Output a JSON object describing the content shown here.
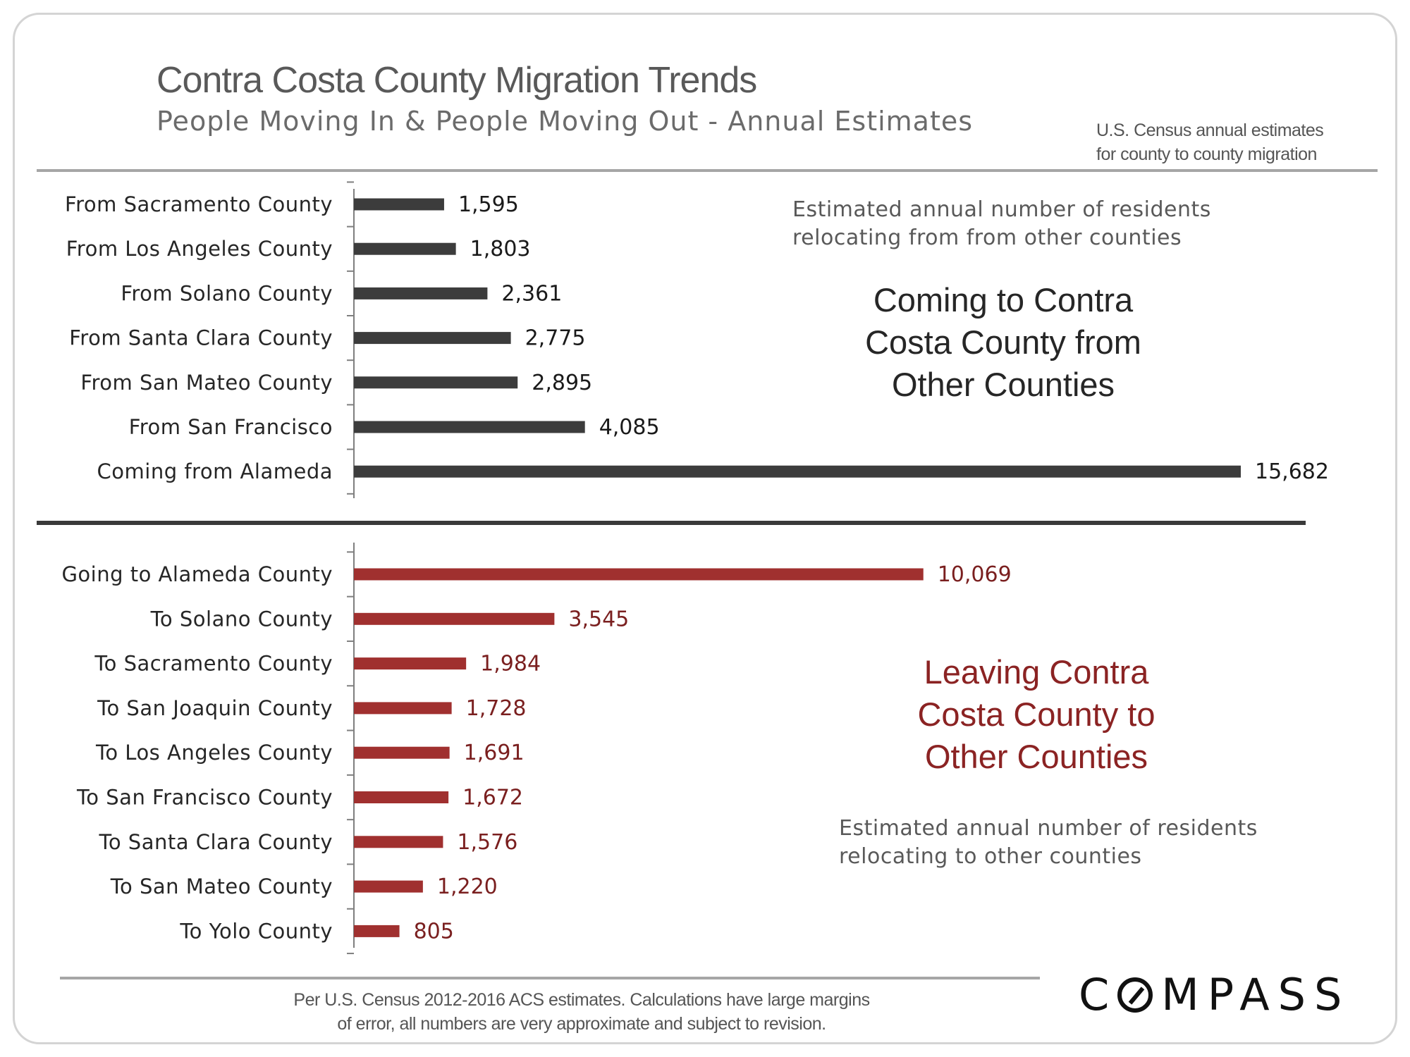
{
  "header": {
    "title": "Contra Costa County Migration Trends",
    "subtitle": "People Moving In & People Moving Out - Annual Estimates",
    "source_line1": "U.S. Census annual estimates",
    "source_line2": "for county to county migration"
  },
  "annotations": {
    "in_note_line1": "Estimated annual number of  residents",
    "in_note_line2": "relocating from  from other counties",
    "in_heading_line1": "Coming to Contra",
    "in_heading_line2": "Costa County from",
    "in_heading_line3": "Other Counties",
    "out_heading_line1": "Leaving Contra",
    "out_heading_line2": "Costa County to",
    "out_heading_line3": "Other Counties",
    "out_note_line1": "Estimated annual number of  residents",
    "out_note_line2": "relocating to  other counties"
  },
  "footer": {
    "line1": "Per U.S. Census 2012-2016 ACS estimates. Calculations have large margins",
    "line2": "of error, all numbers are very approximate and subject to revision.",
    "logo_text": "MPASS",
    "logo_first": "C"
  },
  "colors": {
    "in_bar": "#3c3c3c",
    "out_bar": "#a0302f",
    "in_label": "#1a1a1a",
    "out_label": "#7a1f1f"
  },
  "chart_data": [
    {
      "type": "bar",
      "orientation": "horizontal",
      "categories": [
        "From Sacramento County",
        "From Los Angeles County",
        "From Solano County",
        "From Santa Clara County",
        "From San Mateo County",
        "From San Francisco",
        "Coming from Alameda"
      ],
      "values": [
        1595,
        1803,
        2361,
        2775,
        2895,
        4085,
        15682
      ],
      "data_labels": [
        "1,595",
        "1,803",
        "2,361",
        "2,775",
        "2,895",
        "4,085",
        "15,682"
      ],
      "xlim": [
        0,
        15682
      ],
      "grid": false
    },
    {
      "type": "bar",
      "orientation": "horizontal",
      "categories": [
        "Going to Alameda County",
        "To Solano County",
        "To Sacramento County",
        "To San Joaquin County",
        "To Los Angeles County",
        "To San Francisco County",
        "To Santa Clara County",
        "To San Mateo County",
        "To Yolo County"
      ],
      "values": [
        10069,
        3545,
        1984,
        1728,
        1691,
        1672,
        1576,
        1220,
        805
      ],
      "data_labels": [
        "10,069",
        "3,545",
        "1,984",
        "1,728",
        "1,691",
        "1,672",
        "1,576",
        "1,220",
        "805"
      ],
      "xlim": [
        0,
        15682
      ],
      "grid": false
    }
  ]
}
